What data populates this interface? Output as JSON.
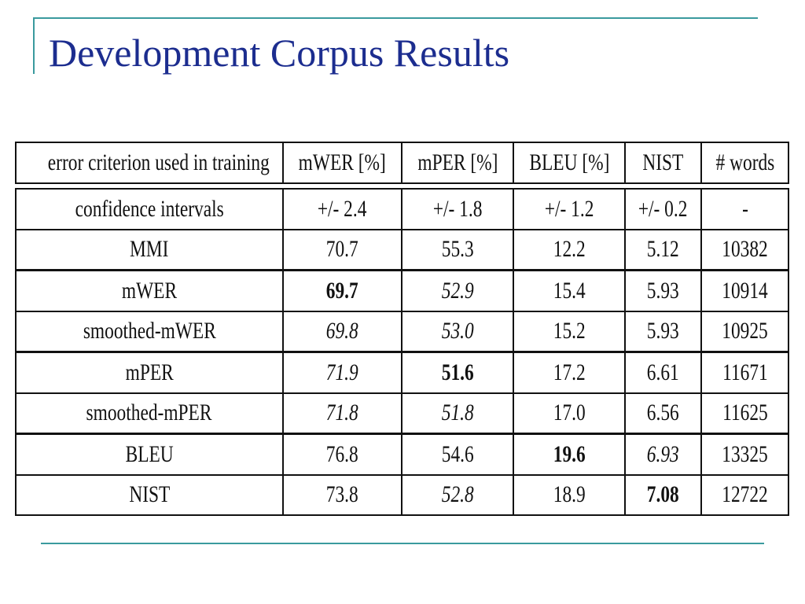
{
  "slide": {
    "title": "Development Corpus Results"
  },
  "table": {
    "headers": [
      "error criterion used in training",
      "mWER [%]",
      "mPER [%]",
      "BLEU [%]",
      "NIST",
      "# words"
    ],
    "rows": [
      {
        "cells": [
          "confidence intervals",
          "+/- 2.4",
          "+/- 1.8",
          "+/- 1.2",
          "+/- 0.2",
          "-"
        ],
        "styles": [
          "",
          "",
          "",
          "",
          "",
          ""
        ]
      },
      {
        "cells": [
          "MMI",
          "70.7",
          "55.3",
          "12.2",
          "5.12",
          "10382"
        ],
        "styles": [
          "",
          "",
          "",
          "",
          "",
          ""
        ]
      },
      {
        "cells": [
          "mWER",
          "69.7",
          "52.9",
          "15.4",
          "5.93",
          "10914"
        ],
        "styles": [
          "",
          "b",
          "i",
          "",
          "",
          ""
        ]
      },
      {
        "cells": [
          "smoothed-mWER",
          "69.8",
          "53.0",
          "15.2",
          "5.93",
          "10925"
        ],
        "styles": [
          "",
          "i",
          "i",
          "",
          "",
          ""
        ]
      },
      {
        "cells": [
          "mPER",
          "71.9",
          "51.6",
          "17.2",
          "6.61",
          "11671"
        ],
        "styles": [
          "",
          "i",
          "b",
          "",
          "",
          ""
        ]
      },
      {
        "cells": [
          "smoothed-mPER",
          "71.8",
          "51.8",
          "17.0",
          "6.56",
          "11625"
        ],
        "styles": [
          "",
          "i",
          "i",
          "",
          "",
          ""
        ]
      },
      {
        "cells": [
          "BLEU",
          "76.8",
          "54.6",
          "19.6",
          "6.93",
          "13325"
        ],
        "styles": [
          "",
          "",
          "",
          "b",
          "i",
          ""
        ]
      },
      {
        "cells": [
          "NIST",
          "73.8",
          "52.8",
          "18.9",
          "7.08",
          "12722"
        ],
        "styles": [
          "",
          "",
          "i",
          "",
          "b",
          ""
        ]
      }
    ]
  }
}
